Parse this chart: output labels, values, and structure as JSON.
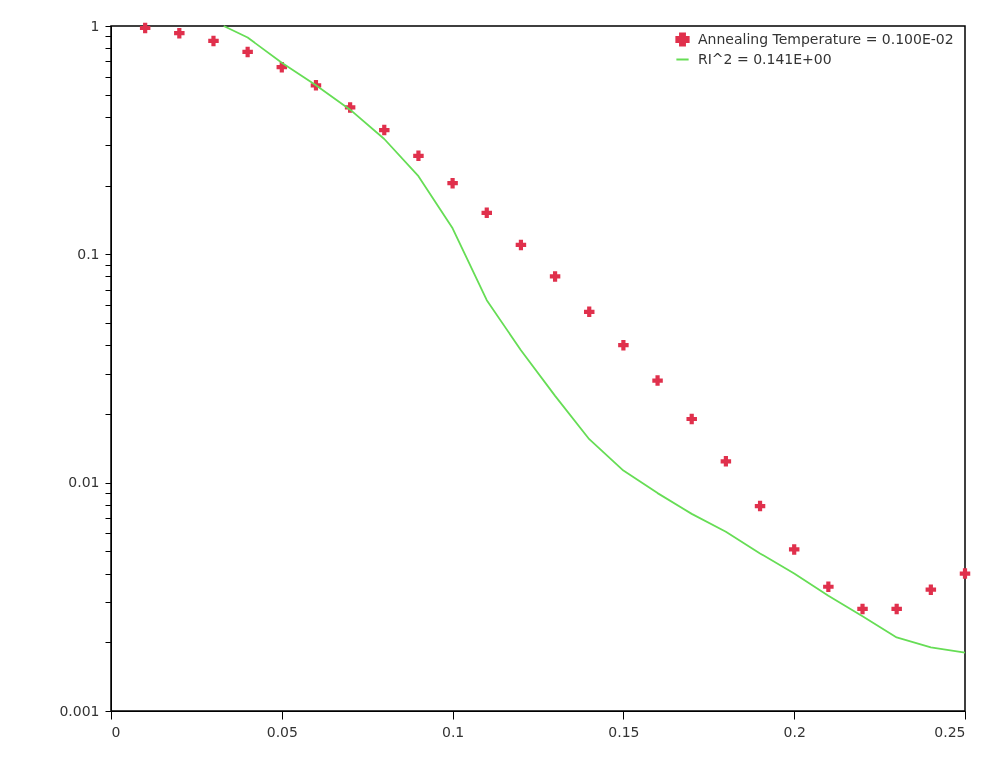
{
  "chart_data": {
    "type": "scatter",
    "log": "y",
    "grid": false,
    "legend": "top right",
    "line_style": "solid",
    "xlim": [
      0,
      0.25
    ],
    "xticks": [
      0,
      0.05,
      0.1,
      0.15,
      0.2,
      0.25
    ],
    "ylim": [
      0.001,
      1
    ],
    "yticks": [
      0.001,
      {
        "value": 0.002,
        "label": null
      },
      {
        "value": 0.003,
        "label": null
      },
      {
        "value": 0.004,
        "label": null
      },
      {
        "value": 0.005,
        "label": null
      },
      {
        "value": 0.006,
        "label": null
      },
      {
        "value": 0.007,
        "label": null
      },
      {
        "value": 0.008,
        "label": null
      },
      {
        "value": 0.009,
        "label": null
      },
      0.01,
      {
        "value": 0.02,
        "label": null
      },
      {
        "value": 0.03,
        "label": null
      },
      {
        "value": 0.04,
        "label": null
      },
      {
        "value": 0.05,
        "label": null
      },
      {
        "value": 0.06,
        "label": null
      },
      {
        "value": 0.07,
        "label": null
      },
      {
        "value": 0.08,
        "label": null
      },
      {
        "value": 0.09,
        "label": null
      },
      0.1,
      {
        "value": 0.2,
        "label": null
      },
      {
        "value": 0.3,
        "label": null
      },
      {
        "value": 0.4,
        "label": null
      },
      {
        "value": 0.5,
        "label": null
      },
      {
        "value": 0.6,
        "label": null
      },
      {
        "value": 0.7,
        "label": null
      },
      {
        "value": 0.8,
        "label": null
      },
      {
        "value": 0.9,
        "label": null
      },
      1
    ],
    "series": [
      {
        "name": "Annealing Temperature =  0.100E-02",
        "marker": "cross",
        "color": "#e0304c",
        "x": [
          0.01,
          0.02,
          0.03,
          0.04,
          0.05,
          0.06,
          0.07,
          0.08,
          0.09,
          0.1,
          0.11,
          0.12,
          0.13,
          0.14,
          0.15,
          0.16,
          0.17,
          0.18,
          0.19,
          0.2,
          0.21,
          0.22,
          0.23,
          0.24,
          0.25
        ],
        "values": [
          0.98,
          0.93,
          0.86,
          0.77,
          0.66,
          0.55,
          0.44,
          0.35,
          0.27,
          0.205,
          0.152,
          0.11,
          0.08,
          0.056,
          0.04,
          0.028,
          0.019,
          0.0124,
          0.0079,
          0.0051,
          0.0035,
          0.0028,
          0.0028,
          0.0034,
          0.004
        ]
      },
      {
        "name": "RI^2 =  0.141E+00",
        "type": "line",
        "marker": "none",
        "color": "#66dd55",
        "x": [
          0.033,
          0.04,
          0.05,
          0.06,
          0.07,
          0.08,
          0.09,
          0.1,
          0.11,
          0.12,
          0.13,
          0.14,
          0.15,
          0.16,
          0.17,
          0.18,
          0.19,
          0.2,
          0.21,
          0.22,
          0.23,
          0.24,
          0.25
        ],
        "values": [
          1,
          0.89,
          0.69,
          0.55,
          0.43,
          0.32,
          0.22,
          0.13,
          0.063,
          0.038,
          0.024,
          0.0155,
          0.0113,
          0.009,
          0.0073,
          0.0061,
          0.0049,
          0.004,
          0.0032,
          0.0026,
          0.0021,
          0.0019,
          0.0018
        ]
      }
    ]
  }
}
